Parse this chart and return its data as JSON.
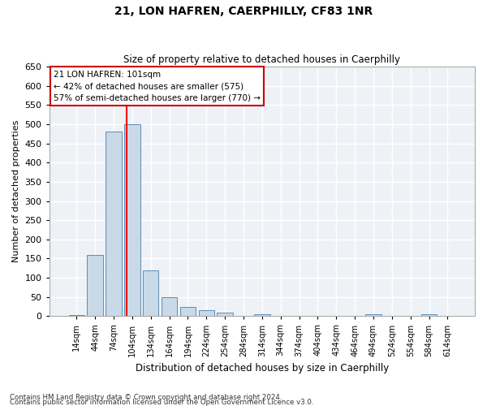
{
  "title": "21, LON HAFREN, CAERPHILLY, CF83 1NR",
  "subtitle": "Size of property relative to detached houses in Caerphilly",
  "xlabel": "Distribution of detached houses by size in Caerphilly",
  "ylabel": "Number of detached properties",
  "bar_color": "#c9d9e8",
  "bar_edge_color": "#5b8db8",
  "background_color": "#eef2f7",
  "grid_color": "#ffffff",
  "categories": [
    "14sqm",
    "44sqm",
    "74sqm",
    "104sqm",
    "134sqm",
    "164sqm",
    "194sqm",
    "224sqm",
    "254sqm",
    "284sqm",
    "314sqm",
    "344sqm",
    "374sqm",
    "404sqm",
    "434sqm",
    "464sqm",
    "494sqm",
    "524sqm",
    "554sqm",
    "584sqm",
    "614sqm"
  ],
  "values": [
    2,
    160,
    480,
    500,
    120,
    50,
    25,
    15,
    10,
    0,
    5,
    0,
    0,
    0,
    0,
    0,
    5,
    0,
    0,
    5,
    0
  ],
  "ylim": [
    0,
    650
  ],
  "yticks": [
    0,
    50,
    100,
    150,
    200,
    250,
    300,
    350,
    400,
    450,
    500,
    550,
    600,
    650
  ],
  "red_line_x": 2.72,
  "annotation_text": "21 LON HAFREN: 101sqm\n← 42% of detached houses are smaller (575)\n57% of semi-detached houses are larger (770) →",
  "annotation_box_color": "#ffffff",
  "annotation_edge_color": "#cc0000",
  "footnote1": "Contains HM Land Registry data © Crown copyright and database right 2024.",
  "footnote2": "Contains public sector information licensed under the Open Government Licence v3.0."
}
